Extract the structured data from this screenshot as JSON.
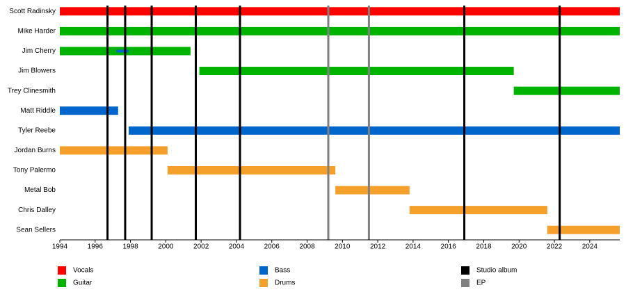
{
  "chart_data": {
    "type": "timeline",
    "members": [
      {
        "name": "Scott Radinsky",
        "periods": [
          {
            "role": "Vocals",
            "start": 1994,
            "end": 2025.7
          }
        ]
      },
      {
        "name": "Mike Harder",
        "periods": [
          {
            "role": "Guitar",
            "start": 1994,
            "end": 2025.7
          }
        ]
      },
      {
        "name": "Jim Cherry",
        "periods": [
          {
            "role": "Guitar",
            "start": 1994,
            "end": 2001.4
          },
          {
            "role": "Bass",
            "start": 1997.2,
            "end": 1997.9
          }
        ]
      },
      {
        "name": "Jim Blowers",
        "periods": [
          {
            "role": "Guitar",
            "start": 2001.9,
            "end": 2019.7
          }
        ]
      },
      {
        "name": "Trey Clinesmith",
        "periods": [
          {
            "role": "Guitar",
            "start": 2019.7,
            "end": 2025.7
          }
        ]
      },
      {
        "name": "Matt Riddle",
        "periods": [
          {
            "role": "Bass",
            "start": 1994,
            "end": 1997.3
          }
        ]
      },
      {
        "name": "Tyler Reebe",
        "periods": [
          {
            "role": "Bass",
            "start": 1997.9,
            "end": 2025.7
          }
        ]
      },
      {
        "name": "Jordan Burns",
        "periods": [
          {
            "role": "Drums",
            "start": 1994,
            "end": 2000.1
          }
        ]
      },
      {
        "name": "Tony Palermo",
        "periods": [
          {
            "role": "Drums",
            "start": 2000.1,
            "end": 2009.6
          }
        ]
      },
      {
        "name": "Metal Bob",
        "periods": [
          {
            "role": "Drums",
            "start": 2009.6,
            "end": 2013.8
          }
        ]
      },
      {
        "name": "Chris Dalley",
        "periods": [
          {
            "role": "Drums",
            "start": 2013.8,
            "end": 2021.6
          }
        ]
      },
      {
        "name": "Sean Sellers",
        "periods": [
          {
            "role": "Drums",
            "start": 2021.6,
            "end": 2025.7
          }
        ]
      }
    ],
    "roles": [
      {
        "name": "Vocals",
        "color": "#ff0000"
      },
      {
        "name": "Guitar",
        "color": "#00b300"
      },
      {
        "name": "Bass",
        "color": "#0066cc"
      },
      {
        "name": "Drums",
        "color": "#f5a02a"
      }
    ],
    "event_types": [
      {
        "name": "Studio album",
        "color": "#000000"
      },
      {
        "name": "EP",
        "color": "#808080"
      }
    ],
    "events": [
      {
        "type": "Studio album",
        "year": 1996.7
      },
      {
        "type": "Studio album",
        "year": 1997.7
      },
      {
        "type": "Studio album",
        "year": 1999.2
      },
      {
        "type": "Studio album",
        "year": 2001.7
      },
      {
        "type": "Studio album",
        "year": 2004.2
      },
      {
        "type": "EP",
        "year": 2009.2
      },
      {
        "type": "EP",
        "year": 2011.5
      },
      {
        "type": "Studio album",
        "year": 2016.9
      },
      {
        "type": "Studio album",
        "year": 2022.3
      }
    ],
    "xlim": [
      1994,
      2025.7
    ],
    "xticks": [
      1994,
      1996,
      1998,
      2000,
      2002,
      2004,
      2006,
      2008,
      2010,
      2012,
      2014,
      2016,
      2018,
      2020,
      2022,
      2024
    ]
  }
}
